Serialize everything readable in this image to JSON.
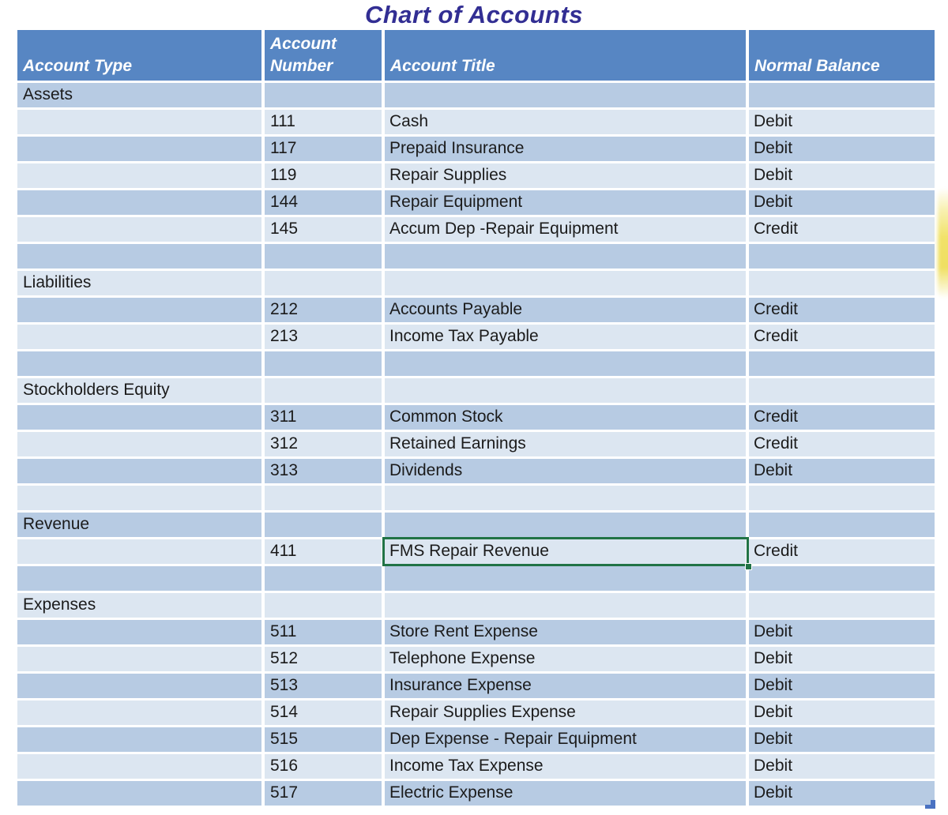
{
  "title": "Chart of Accounts",
  "table": {
    "columns": [
      {
        "label": "Account Type"
      },
      {
        "label": "Account Number"
      },
      {
        "label": "Account Title"
      },
      {
        "label": "Normal Balance"
      }
    ],
    "rows": [
      {
        "kind": "section",
        "account_type": "Assets"
      },
      {
        "kind": "account",
        "number": "111",
        "title": "Cash",
        "normal_balance": "Debit"
      },
      {
        "kind": "account",
        "number": "117",
        "title": "Prepaid Insurance",
        "normal_balance": "Debit"
      },
      {
        "kind": "account",
        "number": "119",
        "title": "Repair Supplies",
        "normal_balance": "Debit"
      },
      {
        "kind": "account",
        "number": "144",
        "title": "Repair Equipment",
        "normal_balance": "Debit"
      },
      {
        "kind": "account",
        "number": "145",
        "title": "Accum Dep -Repair Equipment",
        "normal_balance": "Credit"
      },
      {
        "kind": "spacer"
      },
      {
        "kind": "section",
        "account_type": "Liabilities"
      },
      {
        "kind": "account",
        "number": "212",
        "title": "Accounts Payable",
        "normal_balance": "Credit"
      },
      {
        "kind": "account",
        "number": "213",
        "title": "Income Tax Payable",
        "normal_balance": "Credit"
      },
      {
        "kind": "spacer"
      },
      {
        "kind": "section",
        "account_type": "Stockholders Equity"
      },
      {
        "kind": "account",
        "number": "311",
        "title": "Common Stock",
        "normal_balance": "Credit"
      },
      {
        "kind": "account",
        "number": "312",
        "title": "Retained Earnings",
        "normal_balance": "Credit"
      },
      {
        "kind": "account",
        "number": "313",
        "title": "Dividends",
        "normal_balance": "Debit"
      },
      {
        "kind": "spacer"
      },
      {
        "kind": "section",
        "account_type": "Revenue"
      },
      {
        "kind": "account",
        "number": "411",
        "title": "FMS Repair Revenue",
        "normal_balance": "Credit",
        "selected": true
      },
      {
        "kind": "spacer"
      },
      {
        "kind": "section",
        "account_type": "Expenses"
      },
      {
        "kind": "account",
        "number": "511",
        "title": "Store Rent Expense",
        "normal_balance": "Debit"
      },
      {
        "kind": "account",
        "number": "512",
        "title": "Telephone Expense",
        "normal_balance": "Debit"
      },
      {
        "kind": "account",
        "number": "513",
        "title": "Insurance Expense",
        "normal_balance": "Debit"
      },
      {
        "kind": "account",
        "number": "514",
        "title": "Repair Supplies Expense",
        "normal_balance": "Debit"
      },
      {
        "kind": "account",
        "number": "515",
        "title": "Dep Expense - Repair Equipment",
        "normal_balance": "Debit"
      },
      {
        "kind": "account",
        "number": "516",
        "title": "Income Tax Expense",
        "normal_balance": "Debit"
      },
      {
        "kind": "account",
        "number": "517",
        "title": "Electric Expense",
        "normal_balance": "Debit"
      }
    ],
    "selection": {
      "row_number": "411",
      "column": "Account Title",
      "cell_value": "FMS Repair Revenue"
    }
  },
  "colors": {
    "header_fill": "#5786c3",
    "row_medium": "#b7cbe3",
    "row_light": "#dce6f1",
    "title_text": "#322e93",
    "header_text": "#ffffff",
    "selection_border": "#217346",
    "resize_handle": "#4a72c2",
    "highlight_streak": "#f0e060"
  }
}
